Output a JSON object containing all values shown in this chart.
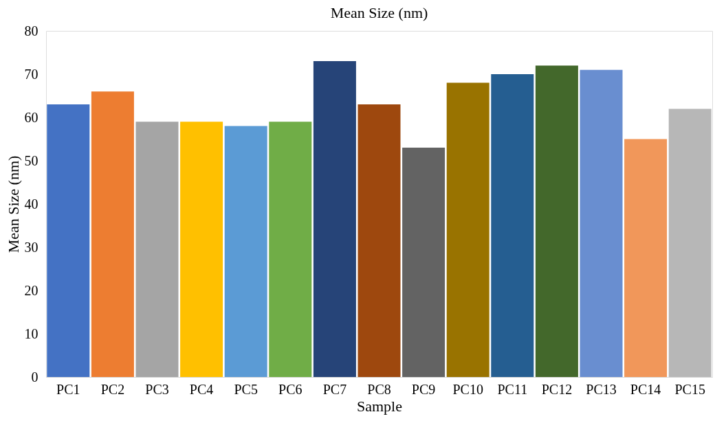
{
  "chart_data": {
    "type": "bar",
    "title": "Mean Size (nm)",
    "xlabel": "Sample",
    "ylabel": "Mean Size (nm)",
    "categories": [
      "PC1",
      "PC2",
      "PC3",
      "PC4",
      "PC5",
      "PC6",
      "PC7",
      "PC8",
      "PC9",
      "PC10",
      "PC11",
      "PC12",
      "PC13",
      "PC14",
      "PC15"
    ],
    "values": [
      63,
      66,
      59,
      59,
      58,
      59,
      73,
      63,
      53,
      68,
      70,
      72,
      71,
      55,
      62
    ],
    "colors": [
      "#4472c4",
      "#ed7d31",
      "#a5a5a5",
      "#ffc000",
      "#5b9bd5",
      "#70ad47",
      "#264478",
      "#9e480e",
      "#636363",
      "#997300",
      "#255e91",
      "#43682b",
      "#698ed0",
      "#f1975a",
      "#b7b7b7"
    ],
    "ylim": [
      0,
      80
    ],
    "yticks": [
      0,
      10,
      20,
      30,
      40,
      50,
      60,
      70,
      80
    ],
    "grid": false,
    "legend": false
  }
}
